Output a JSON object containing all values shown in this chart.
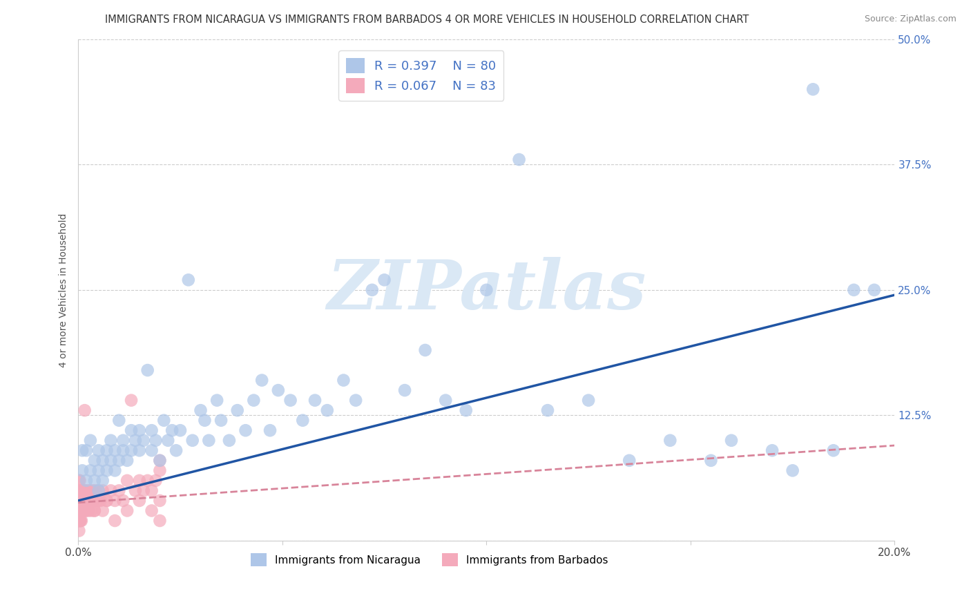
{
  "title": "IMMIGRANTS FROM NICARAGUA VS IMMIGRANTS FROM BARBADOS 4 OR MORE VEHICLES IN HOUSEHOLD CORRELATION CHART",
  "source": "Source: ZipAtlas.com",
  "xlabel_nicaragua": "Immigrants from Nicaragua",
  "xlabel_barbados": "Immigrants from Barbados",
  "ylabel": "4 or more Vehicles in Household",
  "xlim": [
    0.0,
    0.2
  ],
  "ylim": [
    0.0,
    0.5
  ],
  "xticks": [
    0.0,
    0.05,
    0.1,
    0.15,
    0.2
  ],
  "yticks": [
    0.0,
    0.125,
    0.25,
    0.375,
    0.5
  ],
  "nicaragua_R": 0.397,
  "nicaragua_N": 80,
  "barbados_R": 0.067,
  "barbados_N": 83,
  "blue_scatter_color": "#AEC6E8",
  "blue_line_color": "#2055A4",
  "pink_scatter_color": "#F4AABB",
  "pink_line_color": "#D45A7A",
  "pink_dash_color": "#D8849A",
  "tick_right_color": "#4472C4",
  "grid_color": "#CCCCCC",
  "background_color": "#FFFFFF",
  "watermark_color": "#DAE8F5",
  "nicaragua_x": [
    0.001,
    0.001,
    0.002,
    0.002,
    0.003,
    0.003,
    0.004,
    0.004,
    0.005,
    0.005,
    0.005,
    0.006,
    0.006,
    0.007,
    0.007,
    0.008,
    0.008,
    0.009,
    0.009,
    0.01,
    0.01,
    0.011,
    0.011,
    0.012,
    0.013,
    0.013,
    0.014,
    0.015,
    0.015,
    0.016,
    0.017,
    0.018,
    0.018,
    0.019,
    0.02,
    0.021,
    0.022,
    0.023,
    0.024,
    0.025,
    0.027,
    0.028,
    0.03,
    0.031,
    0.032,
    0.034,
    0.035,
    0.037,
    0.039,
    0.041,
    0.043,
    0.045,
    0.047,
    0.049,
    0.052,
    0.055,
    0.058,
    0.061,
    0.065,
    0.068,
    0.072,
    0.075,
    0.08,
    0.085,
    0.09,
    0.095,
    0.1,
    0.108,
    0.115,
    0.125,
    0.135,
    0.145,
    0.155,
    0.16,
    0.17,
    0.175,
    0.18,
    0.185,
    0.19,
    0.195
  ],
  "nicaragua_y": [
    0.07,
    0.09,
    0.06,
    0.09,
    0.07,
    0.1,
    0.08,
    0.06,
    0.09,
    0.07,
    0.05,
    0.08,
    0.06,
    0.09,
    0.07,
    0.08,
    0.1,
    0.07,
    0.09,
    0.08,
    0.12,
    0.09,
    0.1,
    0.08,
    0.11,
    0.09,
    0.1,
    0.09,
    0.11,
    0.1,
    0.17,
    0.09,
    0.11,
    0.1,
    0.08,
    0.12,
    0.1,
    0.11,
    0.09,
    0.11,
    0.26,
    0.1,
    0.13,
    0.12,
    0.1,
    0.14,
    0.12,
    0.1,
    0.13,
    0.11,
    0.14,
    0.16,
    0.11,
    0.15,
    0.14,
    0.12,
    0.14,
    0.13,
    0.16,
    0.14,
    0.25,
    0.26,
    0.15,
    0.19,
    0.14,
    0.13,
    0.25,
    0.38,
    0.13,
    0.14,
    0.08,
    0.1,
    0.08,
    0.1,
    0.09,
    0.07,
    0.45,
    0.09,
    0.25,
    0.25
  ],
  "barbados_x": [
    0.0001,
    0.0002,
    0.0002,
    0.0003,
    0.0003,
    0.0004,
    0.0004,
    0.0005,
    0.0005,
    0.0006,
    0.0006,
    0.0007,
    0.0008,
    0.0009,
    0.001,
    0.001,
    0.0011,
    0.0012,
    0.0013,
    0.0014,
    0.0015,
    0.0016,
    0.0017,
    0.0018,
    0.002,
    0.002,
    0.0022,
    0.0024,
    0.0026,
    0.0028,
    0.003,
    0.0032,
    0.0035,
    0.0038,
    0.004,
    0.0042,
    0.0045,
    0.005,
    0.0055,
    0.006,
    0.007,
    0.008,
    0.009,
    0.01,
    0.011,
    0.012,
    0.013,
    0.014,
    0.015,
    0.016,
    0.017,
    0.018,
    0.019,
    0.02,
    0.0001,
    0.0001,
    0.0002,
    0.0002,
    0.0003,
    0.0003,
    0.0004,
    0.0005,
    0.0006,
    0.0007,
    0.0008,
    0.001,
    0.0012,
    0.0014,
    0.0016,
    0.002,
    0.0025,
    0.003,
    0.004,
    0.005,
    0.006,
    0.007,
    0.009,
    0.012,
    0.015,
    0.018,
    0.02,
    0.02,
    0.02
  ],
  "barbados_y": [
    0.04,
    0.06,
    0.03,
    0.05,
    0.02,
    0.04,
    0.06,
    0.03,
    0.05,
    0.04,
    0.02,
    0.05,
    0.04,
    0.03,
    0.05,
    0.03,
    0.04,
    0.05,
    0.03,
    0.04,
    0.05,
    0.03,
    0.04,
    0.05,
    0.04,
    0.03,
    0.04,
    0.05,
    0.04,
    0.05,
    0.04,
    0.03,
    0.05,
    0.04,
    0.03,
    0.05,
    0.04,
    0.05,
    0.04,
    0.05,
    0.04,
    0.05,
    0.04,
    0.05,
    0.04,
    0.06,
    0.14,
    0.05,
    0.06,
    0.05,
    0.06,
    0.05,
    0.06,
    0.07,
    0.02,
    0.03,
    0.02,
    0.01,
    0.03,
    0.02,
    0.03,
    0.02,
    0.04,
    0.03,
    0.02,
    0.04,
    0.03,
    0.04,
    0.13,
    0.04,
    0.03,
    0.04,
    0.03,
    0.04,
    0.03,
    0.04,
    0.02,
    0.03,
    0.04,
    0.03,
    0.04,
    0.02,
    0.08
  ],
  "nic_trend_x0": 0.0,
  "nic_trend_y0": 0.04,
  "nic_trend_x1": 0.2,
  "nic_trend_y1": 0.245,
  "bar_trend_x0": 0.0,
  "bar_trend_y0": 0.038,
  "bar_trend_x1": 0.2,
  "bar_trend_y1": 0.095
}
